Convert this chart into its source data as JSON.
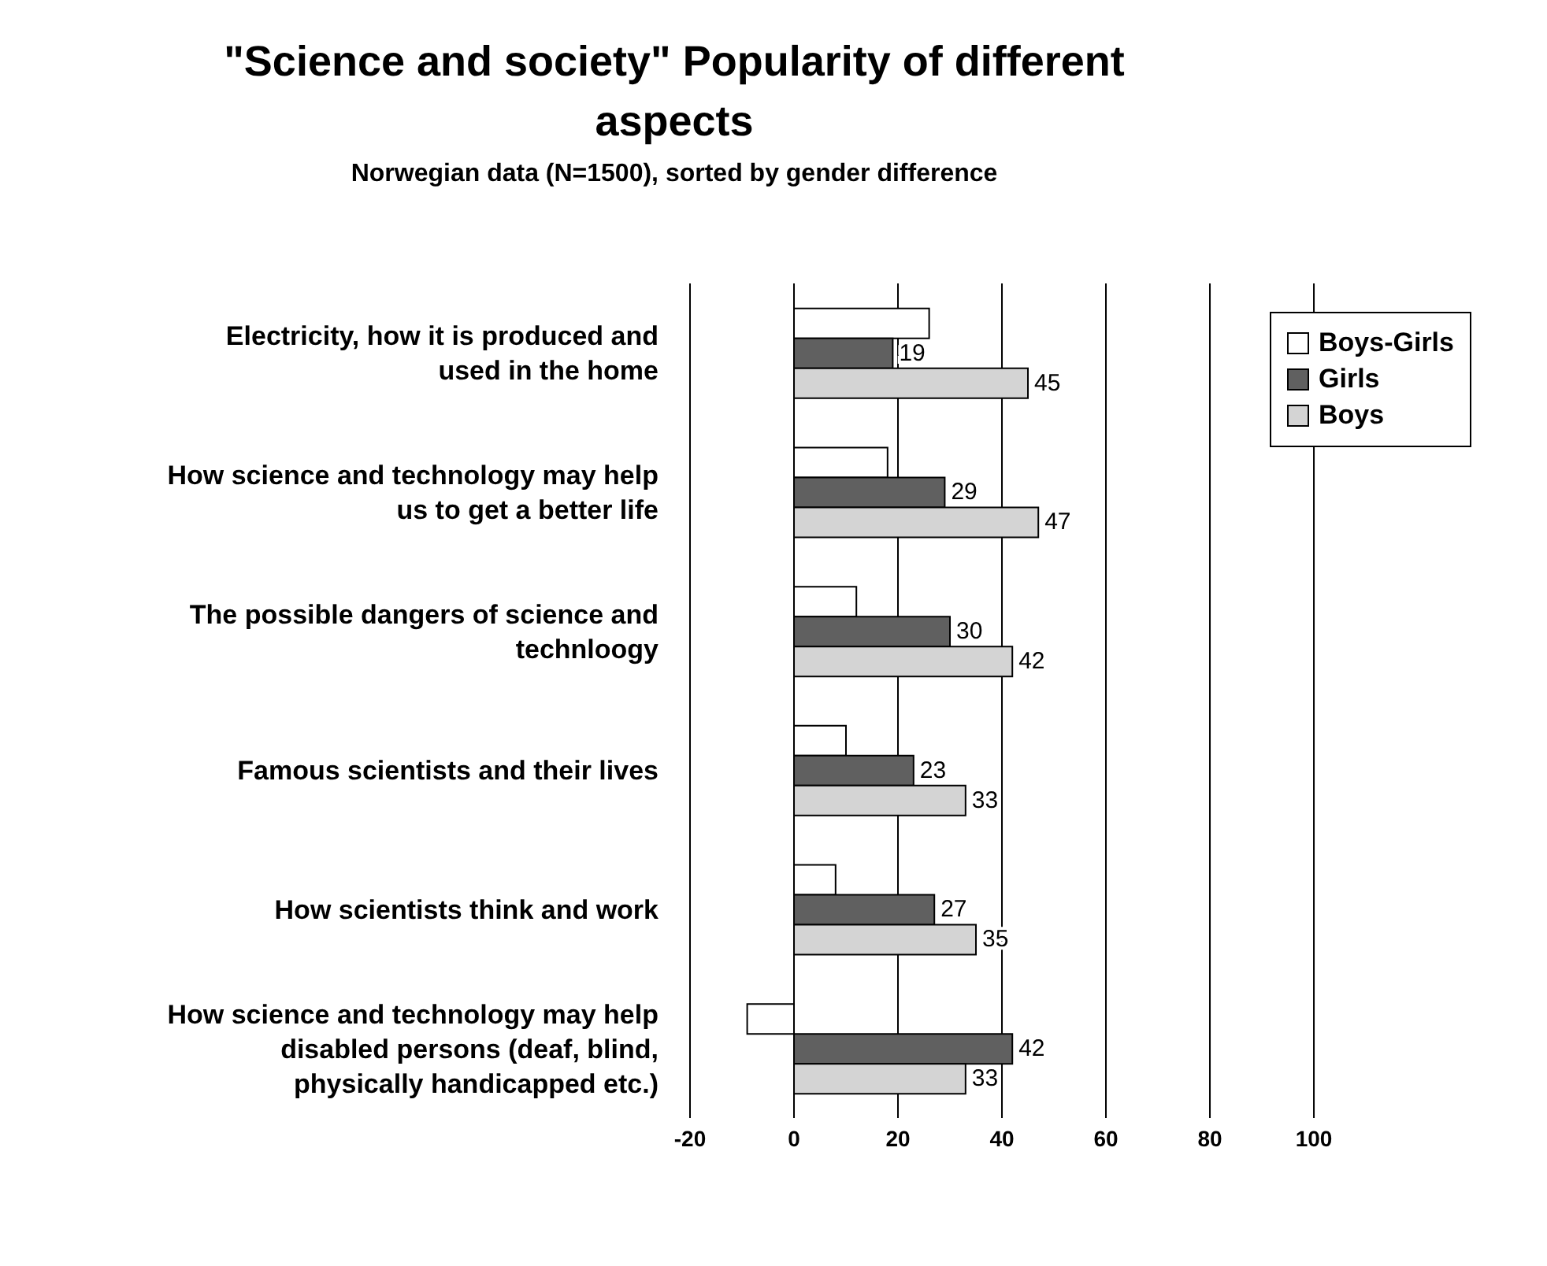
{
  "chart_data": {
    "type": "bar",
    "orientation": "horizontal",
    "title": "\"Science and society\" Popularity of different aspects",
    "subtitle": "Norwegian data (N=1500), sorted by gender difference",
    "categories": [
      "Electricity, how it is produced and used in the home",
      "How science and technology may help us to get a better life",
      "The possible dangers of science and technloogy",
      "Famous scientists and their lives",
      "How scientists think and work",
      "How science and technology may help disabled persons (deaf, blind, physically handicapped etc.)"
    ],
    "series": [
      {
        "name": "Boys-Girls",
        "color": "#ffffff",
        "values": [
          26,
          18,
          12,
          10,
          8,
          -9
        ]
      },
      {
        "name": "Girls",
        "color": "#606060",
        "values": [
          19,
          29,
          30,
          23,
          27,
          42
        ],
        "value_labels": [
          "19",
          "29",
          "30",
          "23",
          "27",
          "42"
        ]
      },
      {
        "name": "Boys",
        "color": "#d4d4d4",
        "values": [
          45,
          47,
          42,
          33,
          35,
          33
        ],
        "value_labels": [
          "45",
          "47",
          "42",
          "33",
          "35",
          "33"
        ]
      }
    ],
    "xlim": [
      -20,
      100
    ],
    "xticks": [
      -20,
      0,
      20,
      40,
      60,
      80,
      100
    ],
    "grid": "x",
    "legend": "top right"
  }
}
